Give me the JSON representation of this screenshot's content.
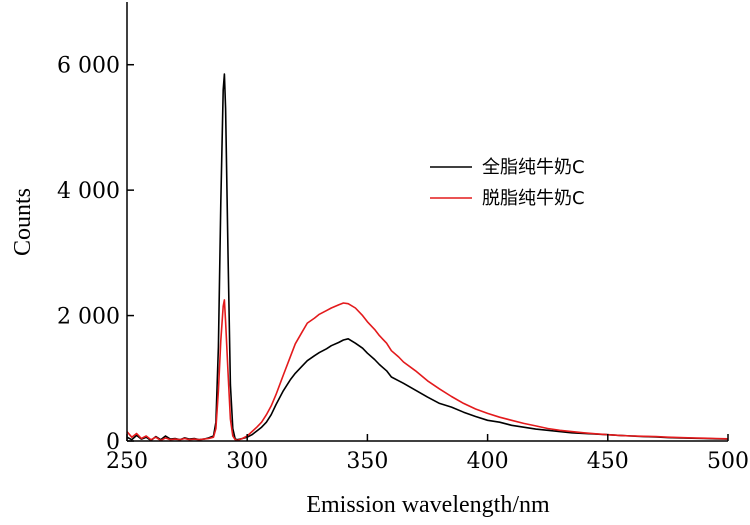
{
  "chart_data": {
    "type": "line",
    "title": "",
    "xlabel": "Emission wavelength/nm",
    "ylabel": "Counts",
    "xlim": [
      250,
      500
    ],
    "ylim": [
      0,
      7000
    ],
    "x_ticks": [
      250,
      300,
      350,
      400,
      450,
      500
    ],
    "x_tick_labels": [
      "250",
      "300",
      "350",
      "400",
      "450",
      "500"
    ],
    "y_ticks": [
      0,
      2000,
      4000,
      6000
    ],
    "y_tick_labels": [
      "0",
      "2 000",
      "4 000",
      "6 000"
    ],
    "grid": false,
    "legend_position": "center-right",
    "series": [
      {
        "name": "全脂纯牛奶C",
        "color": "#000000",
        "x": [
          250,
          252,
          254,
          256,
          258,
          260,
          262,
          264,
          266,
          268,
          270,
          272,
          274,
          276,
          278,
          280,
          282,
          284,
          286,
          287,
          288,
          289,
          290,
          290.5,
          291,
          292,
          293,
          294,
          295,
          296,
          298,
          300,
          302,
          304,
          306,
          308,
          310,
          312,
          315,
          318,
          320,
          323,
          325,
          328,
          330,
          333,
          335,
          338,
          340,
          342,
          345,
          348,
          350,
          353,
          355,
          358,
          360,
          363,
          365,
          370,
          375,
          380,
          385,
          390,
          395,
          400,
          405,
          410,
          415,
          420,
          425,
          430,
          435,
          440,
          445,
          450,
          455,
          460,
          465,
          470,
          475,
          480,
          485,
          490,
          495,
          500
        ],
        "y": [
          60,
          20,
          90,
          30,
          60,
          10,
          70,
          20,
          80,
          30,
          40,
          20,
          50,
          30,
          40,
          20,
          30,
          50,
          80,
          300,
          1500,
          3800,
          5600,
          5850,
          5300,
          3000,
          900,
          200,
          30,
          20,
          40,
          60,
          100,
          160,
          220,
          300,
          420,
          580,
          800,
          980,
          1080,
          1200,
          1280,
          1360,
          1410,
          1470,
          1520,
          1570,
          1610,
          1630,
          1560,
          1480,
          1400,
          1300,
          1220,
          1120,
          1020,
          960,
          920,
          810,
          700,
          600,
          540,
          460,
          390,
          330,
          300,
          250,
          220,
          190,
          170,
          150,
          130,
          120,
          110,
          100,
          90,
          80,
          70,
          65,
          55,
          50,
          45,
          40,
          35,
          30
        ]
      },
      {
        "name": "脱脂纯牛奶C",
        "color": "#e31a1c",
        "x": [
          250,
          252,
          254,
          256,
          258,
          260,
          262,
          264,
          266,
          268,
          270,
          272,
          274,
          276,
          278,
          280,
          282,
          284,
          286,
          287,
          288,
          289,
          290,
          290.5,
          291,
          292,
          293,
          294,
          295,
          296,
          298,
          300,
          302,
          304,
          306,
          308,
          310,
          312,
          315,
          318,
          320,
          323,
          325,
          328,
          330,
          333,
          335,
          338,
          340,
          342,
          345,
          348,
          350,
          353,
          355,
          358,
          360,
          363,
          365,
          370,
          375,
          380,
          385,
          390,
          395,
          400,
          405,
          410,
          415,
          420,
          425,
          430,
          435,
          440,
          445,
          450,
          455,
          460,
          465,
          470,
          475,
          480,
          485,
          490,
          495,
          500
        ],
        "y": [
          150,
          60,
          120,
          40,
          80,
          20,
          60,
          10,
          50,
          20,
          30,
          20,
          40,
          20,
          30,
          20,
          30,
          40,
          60,
          200,
          800,
          1600,
          2150,
          2250,
          1900,
          1100,
          350,
          80,
          20,
          10,
          40,
          80,
          150,
          220,
          300,
          420,
          560,
          740,
          1050,
          1350,
          1550,
          1750,
          1880,
          1960,
          2020,
          2080,
          2120,
          2170,
          2200,
          2190,
          2120,
          2000,
          1900,
          1780,
          1680,
          1560,
          1440,
          1340,
          1260,
          1120,
          960,
          830,
          710,
          600,
          510,
          440,
          380,
          330,
          280,
          240,
          200,
          170,
          150,
          130,
          115,
          100,
          90,
          80,
          75,
          70,
          60,
          55,
          50,
          45,
          40,
          35
        ]
      }
    ]
  }
}
